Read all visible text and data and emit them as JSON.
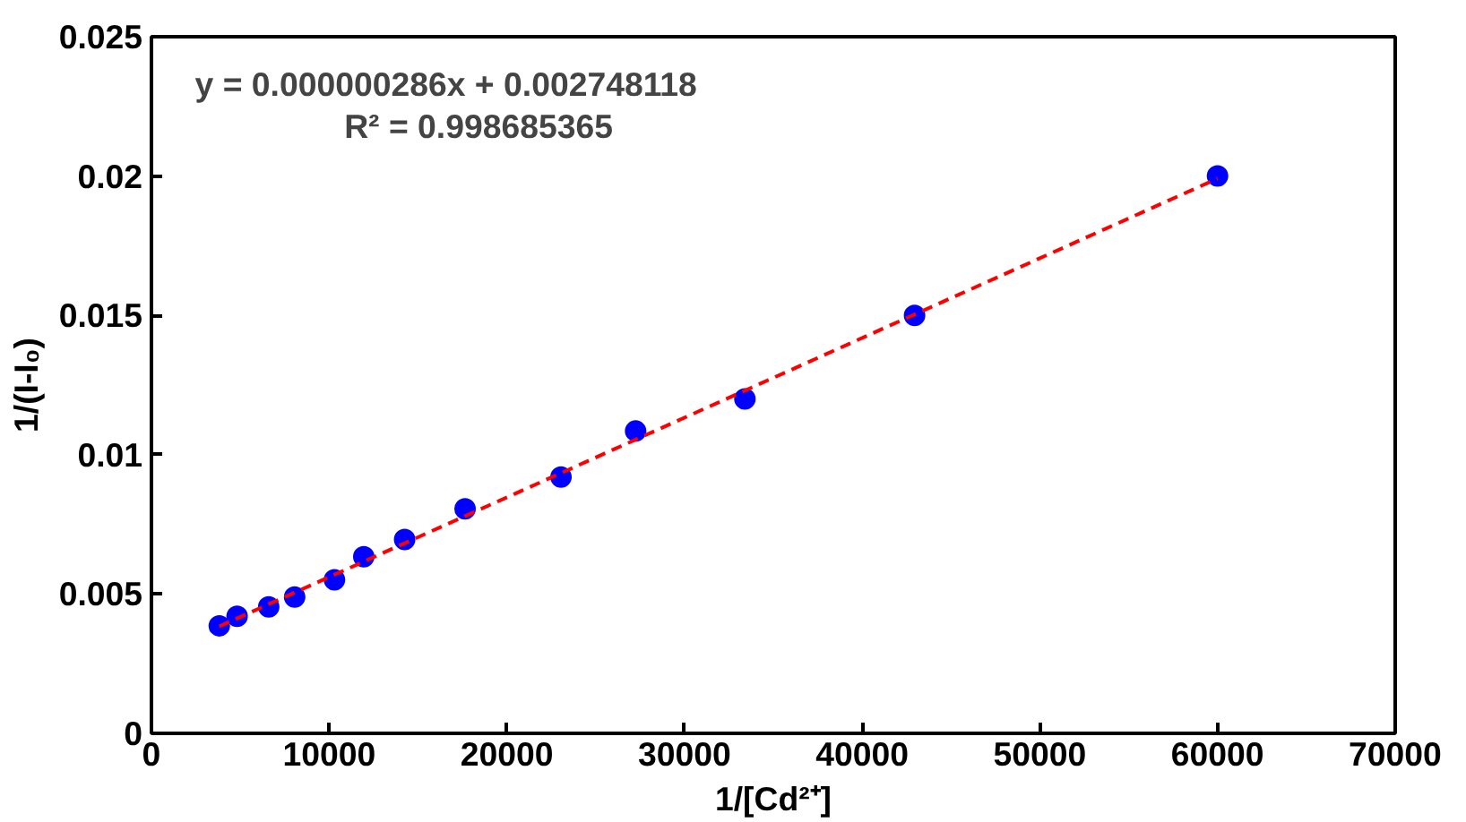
{
  "chart_data": {
    "type": "scatter",
    "xlabel": "1/[Cd²⁺]",
    "ylabel": "1/(I-I₀)",
    "annotations": [
      "y = 0.000000286x + 0.002748118",
      "R² = 0.998685365"
    ],
    "xlim": [
      0,
      70000
    ],
    "xticks": [
      0,
      10000,
      20000,
      30000,
      40000,
      50000,
      60000,
      70000
    ],
    "ylim": [
      0,
      0.025
    ],
    "yticks": [
      0,
      0.005,
      0.01,
      0.015,
      0.02,
      0.025
    ],
    "grid": false,
    "series": [
      {
        "color": "#0000ff",
        "marker": "circle",
        "x": [
          3820,
          4820,
          6600,
          8060,
          10300,
          11950,
          14250,
          17650,
          23050,
          27250,
          33400,
          42950,
          60000
        ],
        "values": [
          0.00386,
          0.0042,
          0.00454,
          0.00489,
          0.00551,
          0.00634,
          0.00696,
          0.00806,
          0.0092,
          0.01085,
          0.012,
          0.015,
          0.02
        ]
      },
      {
        "type": "line",
        "color": "#ff0000",
        "line_style": "dashed",
        "marker": "none",
        "x": [
          3820,
          60000
        ],
        "values": [
          0.00384,
          0.01991
        ]
      }
    ]
  }
}
